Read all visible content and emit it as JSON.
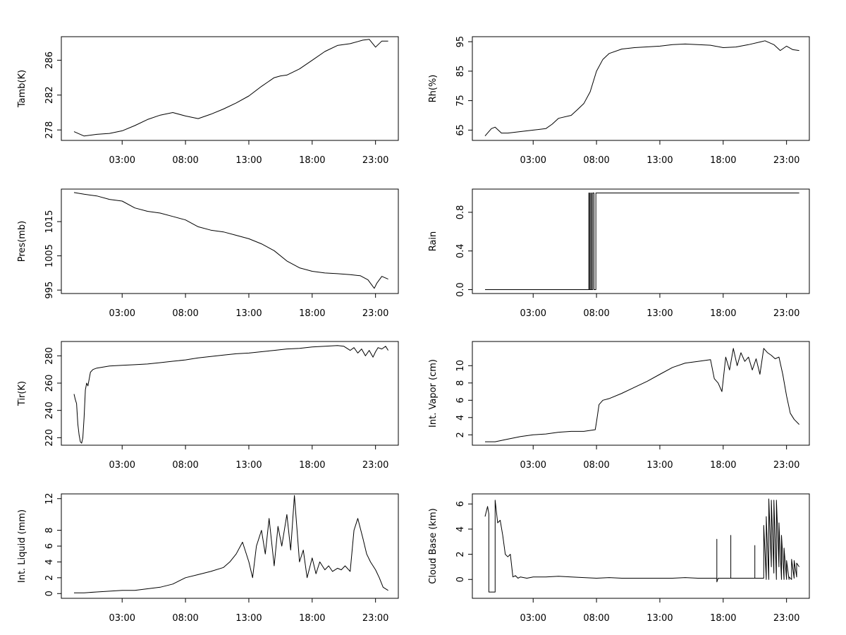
{
  "chart_data": [
    {
      "type": "line",
      "ylabel": "Tamb(K)",
      "xlim": [
        -1.8,
        24.8
      ],
      "ylim": [
        276.8,
        288.7
      ],
      "x_ticks": [
        3,
        8,
        13,
        18,
        23
      ],
      "x_tick_labels": [
        "03:00",
        "08:00",
        "13:00",
        "18:00",
        "23:00"
      ],
      "y_ticks": [
        278,
        282,
        286
      ],
      "y_tick_labels": [
        "278",
        "282",
        "286"
      ],
      "grid": false,
      "series": [
        {
          "x": [
            -0.8,
            0,
            1,
            2,
            3,
            4,
            5,
            6,
            7,
            8,
            9,
            10,
            11,
            12,
            13,
            14,
            15,
            15.5,
            16,
            17,
            18,
            19,
            20,
            20.5,
            21,
            22,
            22.5,
            23,
            23.5,
            24
          ],
          "y": [
            277.8,
            277.3,
            277.5,
            277.6,
            277.9,
            278.5,
            279.2,
            279.7,
            280.0,
            279.6,
            279.3,
            279.8,
            280.4,
            281.1,
            281.9,
            283.0,
            284.0,
            284.2,
            284.3,
            285.0,
            286.0,
            287.0,
            287.7,
            287.8,
            287.9,
            288.3,
            288.4,
            287.5,
            288.2,
            288.2
          ]
        }
      ]
    },
    {
      "type": "line",
      "ylabel": "Rh(%)",
      "xlim": [
        -1.8,
        24.8
      ],
      "ylim": [
        61.5,
        96.7
      ],
      "x_ticks": [
        3,
        8,
        13,
        18,
        23
      ],
      "x_tick_labels": [
        "03:00",
        "08:00",
        "13:00",
        "18:00",
        "23:00"
      ],
      "y_ticks": [
        65,
        75,
        85,
        95
      ],
      "y_tick_labels": [
        "65",
        "75",
        "85",
        "95"
      ],
      "grid": false,
      "series": [
        {
          "x": [
            -0.8,
            -0.3,
            0,
            0.5,
            1,
            2,
            3,
            4,
            4.5,
            5,
            6,
            6.5,
            7,
            7.5,
            8,
            8.5,
            9,
            10,
            11,
            13,
            14,
            15,
            16,
            17,
            18,
            19,
            20,
            21,
            21.3,
            22,
            22.5,
            23,
            23.5,
            24
          ],
          "y": [
            63,
            65.5,
            66,
            64,
            64,
            64.5,
            65,
            65.5,
            67,
            69,
            70,
            72,
            74,
            78,
            85,
            89,
            91,
            92.5,
            93,
            93.5,
            94,
            94.2,
            94,
            93.8,
            93,
            93.2,
            94,
            95,
            95.3,
            94,
            92,
            93.5,
            92.3,
            92
          ]
        }
      ]
    },
    {
      "type": "line",
      "ylabel": "Pres(mb)",
      "xlim": [
        -1.8,
        24.8
      ],
      "ylim": [
        994,
        1024.5
      ],
      "x_ticks": [
        3,
        8,
        13,
        18,
        23
      ],
      "x_tick_labels": [
        "03:00",
        "08:00",
        "13:00",
        "18:00",
        "23:00"
      ],
      "y_ticks": [
        995,
        1005,
        1015
      ],
      "y_tick_labels": [
        "995",
        "1005",
        "1015"
      ],
      "grid": false,
      "series": [
        {
          "x": [
            -0.8,
            0,
            1,
            2,
            3,
            4,
            5,
            6,
            7,
            8,
            9,
            10,
            11,
            12,
            13,
            14,
            15,
            16,
            17,
            18,
            19,
            20,
            21,
            21.8,
            22.4,
            22.9,
            23.1,
            23.5,
            24
          ],
          "y": [
            1023.5,
            1023,
            1022.5,
            1021.5,
            1021,
            1019,
            1018,
            1017.5,
            1016.5,
            1015.5,
            1013.5,
            1012.5,
            1012,
            1011,
            1010,
            1008.5,
            1006.5,
            1003.5,
            1001.5,
            1000.5,
            1000,
            999.8,
            999.5,
            999.2,
            998,
            995.5,
            997,
            999,
            998.2
          ]
        }
      ]
    },
    {
      "type": "line",
      "ylabel": "Rain",
      "xlim": [
        -1.8,
        24.8
      ],
      "ylim": [
        -0.04,
        1.04
      ],
      "x_ticks": [
        3,
        8,
        13,
        18,
        23
      ],
      "x_tick_labels": [
        "03:00",
        "08:00",
        "13:00",
        "18:00",
        "23:00"
      ],
      "y_ticks": [
        0.0,
        0.4,
        0.8
      ],
      "y_tick_labels": [
        "0.0",
        "0.4",
        "0.8"
      ],
      "grid": false,
      "series": [
        {
          "x": [
            -0.8,
            7.4,
            7.4,
            7.45,
            7.45,
            7.55,
            7.55,
            7.6,
            7.6,
            7.7,
            7.7,
            7.8,
            7.8,
            7.95,
            7.95,
            24
          ],
          "y": [
            0,
            0,
            1,
            1,
            0,
            0,
            1,
            1,
            0,
            0,
            1,
            1,
            0,
            0,
            1,
            1
          ]
        }
      ]
    },
    {
      "type": "line",
      "ylabel": "Tir(K)",
      "xlim": [
        -1.8,
        24.8
      ],
      "ylim": [
        214.5,
        290.5
      ],
      "x_ticks": [
        3,
        8,
        13,
        18,
        23
      ],
      "x_tick_labels": [
        "03:00",
        "08:00",
        "13:00",
        "18:00",
        "23:00"
      ],
      "y_ticks": [
        220,
        240,
        260,
        280
      ],
      "y_tick_labels": [
        "220",
        "240",
        "260",
        "280"
      ],
      "grid": false,
      "series": [
        {
          "x": [
            -0.8,
            -0.7,
            -0.6,
            -0.5,
            -0.4,
            -0.3,
            -0.2,
            -0.1,
            0,
            0.1,
            0.2,
            0.3,
            0.4,
            0.5,
            0.7,
            1,
            2,
            3,
            4,
            5,
            6,
            7,
            8,
            9,
            10,
            11,
            12,
            13,
            14,
            15,
            16,
            17,
            18,
            19,
            20,
            20.5,
            21,
            21.3,
            21.6,
            21.9,
            22.2,
            22.5,
            22.8,
            23,
            23.2,
            23.5,
            23.8,
            24
          ],
          "y": [
            252,
            248,
            245,
            230,
            222,
            217,
            216,
            220,
            235,
            255,
            260,
            258,
            263,
            268,
            270,
            271,
            272.5,
            273,
            273.5,
            274,
            275,
            276,
            277,
            278.5,
            279.5,
            280.5,
            281.5,
            282,
            283,
            284,
            285,
            285.5,
            286.5,
            287,
            287.5,
            287,
            284,
            286,
            282,
            285,
            280,
            284,
            279,
            283,
            286,
            285,
            287,
            284
          ]
        }
      ]
    },
    {
      "type": "line",
      "ylabel": "Int. Vapor (cm)",
      "xlim": [
        -1.8,
        24.8
      ],
      "ylim": [
        0.8,
        12.8
      ],
      "x_ticks": [
        3,
        8,
        13,
        18,
        23
      ],
      "x_tick_labels": [
        "03:00",
        "08:00",
        "13:00",
        "18:00",
        "23:00"
      ],
      "y_ticks": [
        2,
        4,
        6,
        8,
        10
      ],
      "y_tick_labels": [
        "2",
        "4",
        "6",
        "8",
        "10"
      ],
      "grid": false,
      "series": [
        {
          "x": [
            -0.8,
            0,
            1,
            2,
            3,
            4,
            5,
            6,
            7,
            7.9,
            8.0,
            8.2,
            8.5,
            9,
            10,
            11,
            12,
            13,
            14,
            15,
            16,
            17,
            17.3,
            17.6,
            17.9,
            18.2,
            18.5,
            18.8,
            19.1,
            19.4,
            19.7,
            20,
            20.3,
            20.6,
            20.9,
            21.2,
            21.5,
            21.8,
            22.1,
            22.4,
            22.7,
            23,
            23.3,
            23.6,
            24
          ],
          "y": [
            1.2,
            1.2,
            1.5,
            1.8,
            2.0,
            2.1,
            2.3,
            2.4,
            2.4,
            2.6,
            3.5,
            5.5,
            6.0,
            6.2,
            6.8,
            7.5,
            8.2,
            9.0,
            9.8,
            10.3,
            10.5,
            10.7,
            8.5,
            8.0,
            7.0,
            11.0,
            9.5,
            12.0,
            10.0,
            11.5,
            10.5,
            11.0,
            9.5,
            10.8,
            9.0,
            12.0,
            11.5,
            11.2,
            10.8,
            11.0,
            9.0,
            6.5,
            4.5,
            3.8,
            3.2
          ]
        }
      ]
    },
    {
      "type": "line",
      "ylabel": "Int. Liquid (mm)",
      "xlim": [
        -1.8,
        24.8
      ],
      "ylim": [
        -0.6,
        12.6
      ],
      "x_ticks": [
        3,
        8,
        13,
        18,
        23
      ],
      "x_tick_labels": [
        "03:00",
        "08:00",
        "13:00",
        "18:00",
        "23:00"
      ],
      "y_ticks": [
        0,
        2,
        4,
        6,
        8,
        12
      ],
      "y_tick_labels": [
        "0",
        "2",
        "4",
        "6",
        "8",
        "12"
      ],
      "grid": false,
      "series": [
        {
          "x": [
            -0.8,
            0,
            1,
            2,
            3,
            4,
            5,
            6,
            7,
            8,
            9,
            10,
            11,
            11.5,
            12,
            12.5,
            13,
            13.3,
            13.6,
            14,
            14.3,
            14.6,
            15,
            15.3,
            15.6,
            16,
            16.3,
            16.6,
            17,
            17.3,
            17.6,
            18,
            18.3,
            18.6,
            19,
            19.3,
            19.6,
            20,
            20.3,
            20.6,
            21,
            21.3,
            21.6,
            22,
            22.3,
            22.6,
            23,
            23.3,
            23.6,
            24
          ],
          "y": [
            0.1,
            0.1,
            0.2,
            0.3,
            0.4,
            0.4,
            0.6,
            0.8,
            1.2,
            2.0,
            2.4,
            2.8,
            3.3,
            4.0,
            5.0,
            6.5,
            4.0,
            2.0,
            6.0,
            8.0,
            5.0,
            9.5,
            3.5,
            8.5,
            6.0,
            10.0,
            5.5,
            12.4,
            4.0,
            5.5,
            2.0,
            4.5,
            2.5,
            4.0,
            3.0,
            3.5,
            2.8,
            3.2,
            3.0,
            3.5,
            2.8,
            8.0,
            9.5,
            7.0,
            5.0,
            4.0,
            3.0,
            2.0,
            0.8,
            0.4
          ]
        }
      ]
    },
    {
      "type": "line",
      "ylabel": "Cloud Base (km)",
      "xlim": [
        -1.8,
        24.8
      ],
      "ylim": [
        -1.5,
        6.8
      ],
      "x_ticks": [
        3,
        8,
        13,
        18,
        23
      ],
      "x_tick_labels": [
        "03:00",
        "08:00",
        "13:00",
        "18:00",
        "23:00"
      ],
      "y_ticks": [
        0,
        2,
        4,
        6
      ],
      "y_tick_labels": [
        "0",
        "2",
        "4",
        "6"
      ],
      "grid": false,
      "series": [
        {
          "x": [
            -0.8,
            -0.6,
            -0.5,
            -0.5,
            0,
            0,
            0.2,
            0.4,
            0.6,
            0.8,
            1,
            1.2,
            1.4,
            1.6,
            1.8,
            2,
            2.5,
            3,
            4,
            5,
            6,
            7,
            8,
            9,
            10,
            11,
            12,
            13,
            14,
            15,
            16,
            17,
            17.5,
            17.5,
            17.5,
            17.6,
            18.5,
            18.6,
            18.6,
            18.6,
            18.7,
            19.5,
            20.5,
            20.5,
            20.5,
            20.6,
            21,
            21.2,
            21.2,
            21.4,
            21.4,
            21.6,
            21.6,
            21.8,
            21.8,
            22,
            22,
            22.2,
            22.2,
            22.4,
            22.4,
            22.6,
            22.6,
            22.8,
            22.8,
            23,
            23,
            23.2,
            23.2,
            23.4,
            23.4,
            23.6,
            23.6,
            23.8,
            23.8,
            24
          ],
          "y": [
            5.0,
            5.8,
            5.2,
            -1.0,
            -1.0,
            6.3,
            4.5,
            4.7,
            3.5,
            2.0,
            1.8,
            2.0,
            0.2,
            0.3,
            0.1,
            0.2,
            0.1,
            0.2,
            0.2,
            0.25,
            0.2,
            0.15,
            0.1,
            0.15,
            0.1,
            0.1,
            0.1,
            0.1,
            0.1,
            0.15,
            0.1,
            0.1,
            0.1,
            3.2,
            -0.2,
            0.1,
            0.1,
            0.1,
            3.5,
            0.1,
            0.1,
            0.1,
            0.1,
            2.7,
            0.1,
            0.1,
            0.1,
            0.1,
            4.3,
            0.0,
            5.0,
            0.0,
            6.4,
            1.0,
            6.3,
            0.5,
            6.3,
            0.0,
            6.3,
            1.0,
            4.5,
            0.0,
            3.5,
            0.0,
            2.5,
            0.0,
            1.5,
            0.0,
            0.2,
            0.0,
            1.6,
            0.1,
            1.5,
            0.2,
            1.3,
            1.0
          ]
        }
      ]
    }
  ]
}
